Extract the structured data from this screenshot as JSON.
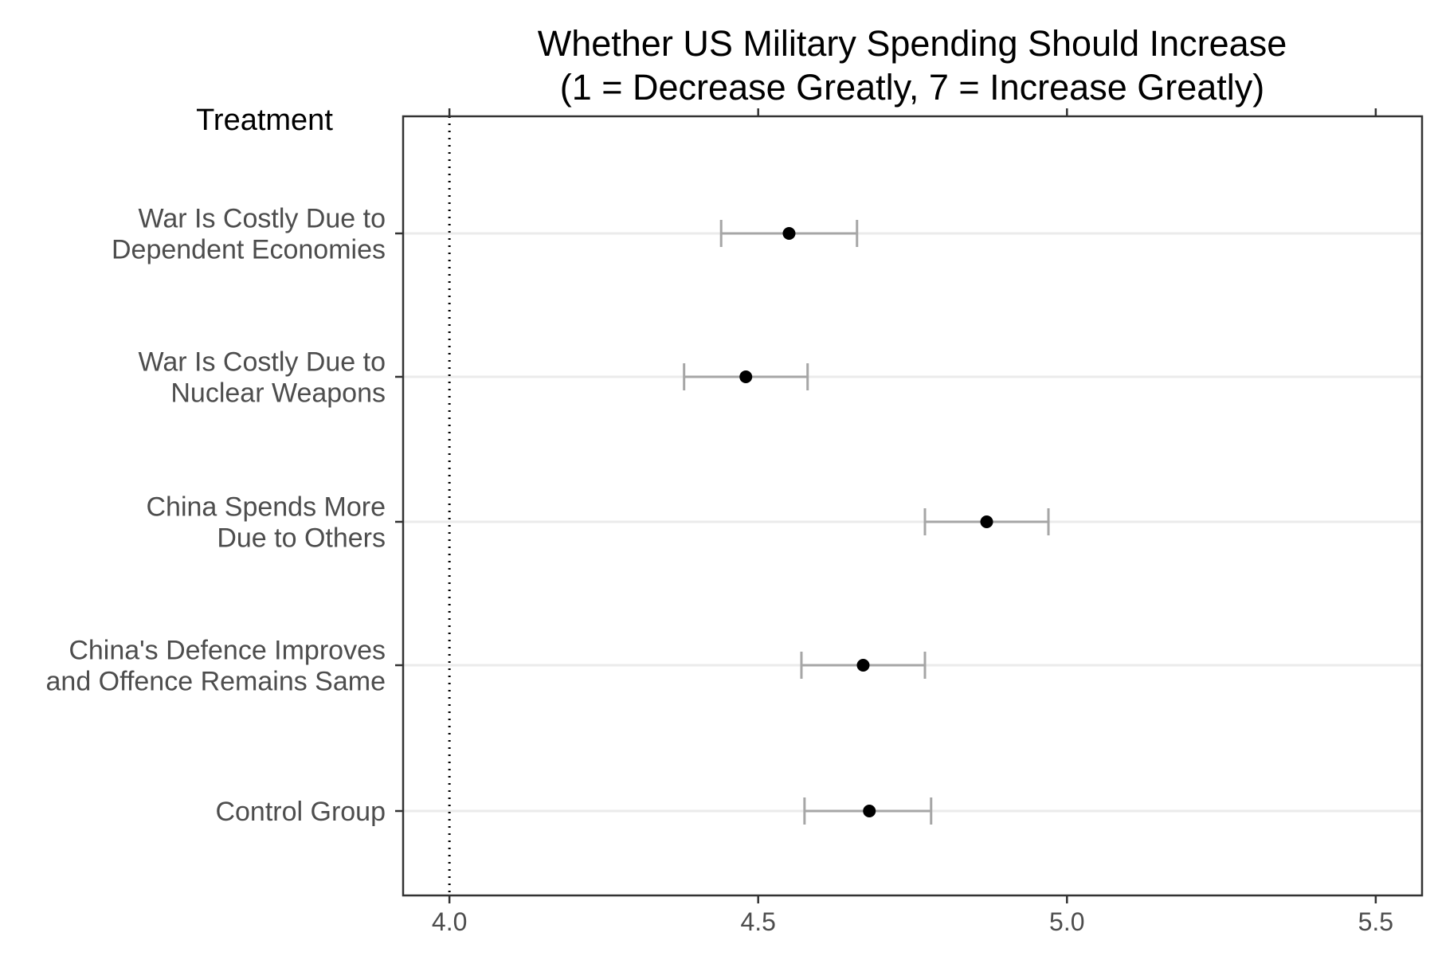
{
  "chart_data": {
    "type": "scatter",
    "title": "Whether US Military Spending Should Increase\n(1 = Decrease Greatly, 7 = Increase Greatly)",
    "ylabel": "Treatment",
    "xlabel": "",
    "xlim": [
      3.925,
      5.575
    ],
    "x_ticks": [
      4.0,
      4.5,
      5.0,
      5.5
    ],
    "x_tick_labels": [
      "4.0",
      "4.5",
      "5.0",
      "5.5"
    ],
    "reference_line": {
      "x": 4.0,
      "style": "dotted"
    },
    "grid": "horizontal major lines",
    "legend": "none",
    "points": [
      {
        "category": "War Is Costly Due to\nDependent Economies",
        "estimate": 4.55,
        "ci_low": 4.44,
        "ci_high": 4.66
      },
      {
        "category": "War Is Costly Due to\nNuclear Weapons",
        "estimate": 4.48,
        "ci_low": 4.38,
        "ci_high": 4.58
      },
      {
        "category": "China Spends More\nDue to Others",
        "estimate": 4.87,
        "ci_low": 4.77,
        "ci_high": 4.97
      },
      {
        "category": "China's Defence Improves\nand Offence Remains Same",
        "estimate": 4.67,
        "ci_low": 4.57,
        "ci_high": 4.77
      },
      {
        "category": "Control Group",
        "estimate": 4.68,
        "ci_low": 4.575,
        "ci_high": 4.78
      }
    ],
    "colors": {
      "point": "#000000",
      "errorbar": "#a6a6a6",
      "gridline": "#ebebeb",
      "panel_border": "#333333",
      "reference_line": "#000000"
    }
  }
}
